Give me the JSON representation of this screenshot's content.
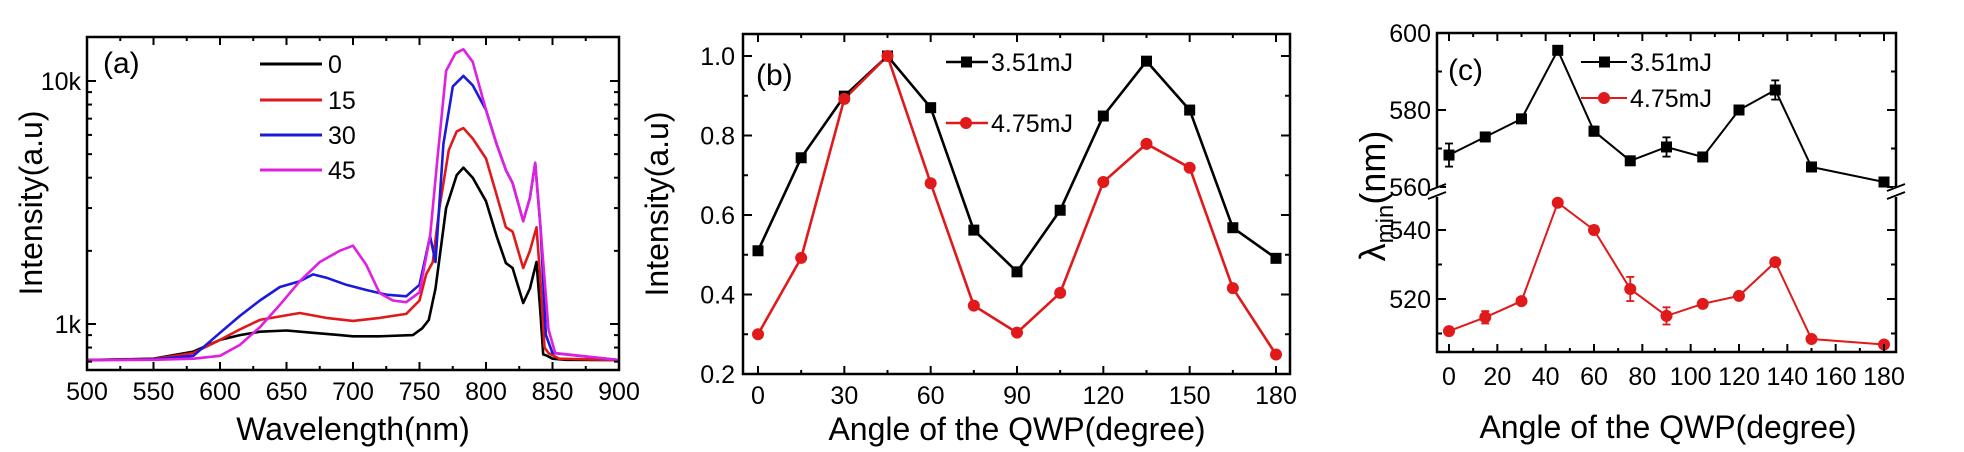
{
  "chart_data": [
    {
      "panel": "(a)",
      "type": "line",
      "xlabel": "Wavelength(nm)",
      "ylabel": "Intensity(a.u)",
      "xlim": [
        500,
        900
      ],
      "ylim": [
        645,
        15000
      ],
      "yscale": "log",
      "xticks": [
        500,
        550,
        600,
        650,
        700,
        750,
        800,
        850,
        900
      ],
      "xtick_labels": [
        "500",
        "550",
        "600",
        "650",
        "700",
        "750",
        "800",
        "850",
        "900"
      ],
      "yticks": [
        1000,
        10000
      ],
      "ytick_labels": [
        "1k",
        "10k"
      ],
      "legend_position": "top-center",
      "grid": false,
      "series": [
        {
          "name": "0",
          "color": "#000000",
          "x": [
            500,
            550,
            580,
            600,
            615,
            630,
            650,
            670,
            690,
            700,
            720,
            745,
            752,
            757,
            762,
            770,
            778,
            783,
            790,
            800,
            808,
            815,
            820,
            828,
            833,
            838,
            841,
            843,
            846,
            850,
            860,
            900
          ],
          "y": [
            710,
            720,
            770,
            860,
            900,
            930,
            940,
            920,
            900,
            890,
            890,
            900,
            960,
            1040,
            1400,
            3000,
            4100,
            4400,
            4000,
            3200,
            2300,
            1780,
            1700,
            1220,
            1400,
            1800,
            1100,
            750,
            740,
            720,
            712,
            710
          ]
        },
        {
          "name": "15",
          "color": "#e0191b",
          "x": [
            500,
            550,
            580,
            600,
            615,
            630,
            660,
            680,
            700,
            720,
            740,
            750,
            755,
            760,
            765,
            772,
            778,
            783,
            790,
            800,
            808,
            815,
            820,
            828,
            833,
            838,
            841,
            844,
            847,
            855,
            900
          ],
          "y": [
            710,
            718,
            760,
            860,
            950,
            1040,
            1110,
            1060,
            1030,
            1060,
            1100,
            1250,
            1600,
            1800,
            3000,
            5200,
            6200,
            6400,
            5800,
            4800,
            3400,
            2500,
            2400,
            1700,
            2000,
            2500,
            1500,
            800,
            760,
            720,
            710
          ]
        },
        {
          "name": "30",
          "color": "#1a1adb",
          "x": [
            500,
            550,
            580,
            600,
            615,
            630,
            645,
            660,
            670,
            680,
            695,
            710,
            725,
            740,
            750,
            758,
            762,
            768,
            775,
            783,
            790,
            800,
            808,
            815,
            820,
            828,
            833,
            837,
            841,
            845,
            850,
            900
          ],
          "y": [
            710,
            715,
            740,
            920,
            1080,
            1250,
            1420,
            1500,
            1600,
            1550,
            1450,
            1380,
            1320,
            1300,
            1450,
            2300,
            1800,
            5500,
            9500,
            10500,
            9600,
            7600,
            5500,
            4300,
            3800,
            2650,
            3300,
            4600,
            2500,
            900,
            760,
            710
          ]
        },
        {
          "name": "45",
          "color": "#e020e0",
          "x": [
            500,
            550,
            580,
            600,
            615,
            630,
            645,
            660,
            675,
            690,
            700,
            710,
            720,
            730,
            740,
            750,
            758,
            763,
            770,
            777,
            783,
            790,
            800,
            808,
            815,
            820,
            828,
            833,
            837,
            841,
            847,
            852,
            900
          ],
          "y": [
            710,
            712,
            720,
            740,
            820,
            970,
            1200,
            1500,
            1800,
            2000,
            2100,
            1750,
            1340,
            1250,
            1230,
            1350,
            2300,
            4500,
            11000,
            13000,
            13500,
            12000,
            7600,
            5500,
            4300,
            3800,
            2650,
            3300,
            4600,
            2500,
            950,
            760,
            710
          ]
        }
      ]
    },
    {
      "panel": "(b)",
      "type": "line",
      "xlabel": "Angle of the QWP(degree)",
      "ylabel": "Intensity(a.u)",
      "xlim": [
        -7,
        185
      ],
      "ylim": [
        0.2,
        1.045
      ],
      "xticks": [
        0,
        30,
        60,
        90,
        120,
        150,
        180
      ],
      "xtick_labels": [
        "0",
        "30",
        "60",
        "90",
        "120",
        "150",
        "180"
      ],
      "yticks": [
        0.2,
        0.4,
        0.6,
        0.8,
        1.0
      ],
      "ytick_labels": [
        "0.2",
        "0.4",
        "0.6",
        "0.8",
        "1.0"
      ],
      "legend_position": "top-center",
      "grid": false,
      "x": [
        0,
        15,
        30,
        45,
        60,
        75,
        90,
        105,
        120,
        135,
        150,
        165,
        180
      ],
      "series": [
        {
          "name": "3.51mJ",
          "color": "#000000",
          "marker": "square",
          "values": [
            0.51,
            0.744,
            0.899,
            1.0,
            0.87,
            0.562,
            0.457,
            0.612,
            0.849,
            0.987,
            0.864,
            0.568,
            0.491
          ]
        },
        {
          "name": "4.75mJ",
          "color": "#e0191b",
          "marker": "circle",
          "values": [
            0.3,
            0.492,
            0.892,
            1.0,
            0.68,
            0.372,
            0.304,
            0.404,
            0.683,
            0.779,
            0.719,
            0.416,
            0.249
          ]
        }
      ]
    },
    {
      "panel": "(c)",
      "type": "line",
      "xlabel": "Angle of the QWP(degree)",
      "ylabel_main": "λ",
      "ylabel_sub": "min",
      "ylabel_unit": "(nm)",
      "xlim": [
        -5,
        185
      ],
      "ylim_upper": [
        560,
        600
      ],
      "ylim_lower": [
        505,
        550
      ],
      "axis_break": true,
      "xticks": [
        0,
        20,
        40,
        60,
        80,
        100,
        120,
        140,
        160,
        180
      ],
      "xtick_labels": [
        "0",
        "20",
        "40",
        "60",
        "80",
        "100",
        "120",
        "140",
        "160",
        "180"
      ],
      "yticks": [
        520,
        540,
        560,
        580,
        600
      ],
      "ytick_labels": [
        "520",
        "540",
        "560",
        "580",
        "600"
      ],
      "legend_position": "top-center",
      "grid": false,
      "x": [
        0,
        15,
        30,
        45,
        60,
        75,
        90,
        105,
        120,
        135,
        150,
        180
      ],
      "series": [
        {
          "name": "3.51mJ",
          "color": "#000000",
          "marker": "square",
          "values": [
            568.3,
            573.0,
            577.7,
            595.5,
            574.5,
            566.8,
            570.4,
            567.8,
            580.0,
            585.2,
            565.2,
            561.3
          ],
          "errors": [
            3.0,
            0.8,
            0.8,
            0.8,
            1.2,
            0.8,
            2.5,
            0.6,
            0.8,
            2.5,
            0.5,
            0.8
          ]
        },
        {
          "name": "4.75mJ",
          "color": "#e0191b",
          "marker": "circle",
          "values": [
            510.7,
            514.7,
            519.4,
            547.9,
            540.0,
            522.9,
            515.1,
            518.6,
            520.9,
            530.7,
            508.4,
            506.8
          ],
          "errors": [
            0.6,
            1.8,
            0.8,
            0.5,
            1.2,
            3.5,
            2.5,
            0.6,
            0.6,
            0.6,
            0.4,
            0.4
          ]
        }
      ]
    }
  ]
}
